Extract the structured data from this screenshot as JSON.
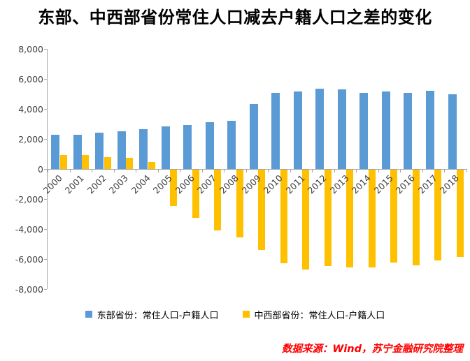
{
  "title": "东部、中西部省份常住人口减去户籍人口之差的变化",
  "source_note": "数据来源：Wind，苏宁金融研究院整理",
  "colors": {
    "eastern": "#5B9BD5",
    "central_western": "#FFC000",
    "axis": "#A6A6A6",
    "tick_label": "#404040",
    "title": "#000000",
    "source": "#FF0000"
  },
  "legend": {
    "items": [
      {
        "id": "eastern",
        "label": "东部省份：常住人口-户籍人口"
      },
      {
        "id": "central-western",
        "label": "中西部省份：常住人口-户籍人口"
      }
    ]
  },
  "chart_data": {
    "type": "bar",
    "title": "东部、中西部省份常住人口减去户籍人口之差的变化",
    "categories": [
      "2000",
      "2001",
      "2002",
      "2003",
      "2004",
      "2005",
      "2006",
      "2007",
      "2008",
      "2009",
      "2010",
      "2011",
      "2012",
      "2013",
      "2014",
      "2015",
      "2016",
      "2017",
      "2018"
    ],
    "series": [
      {
        "id": "eastern",
        "name": "东部省份：常住人口-户籍人口",
        "color": "#5B9BD5",
        "values": [
          2300,
          2300,
          2400,
          2500,
          2650,
          2850,
          2950,
          3100,
          3200,
          4350,
          5050,
          5150,
          5350,
          5300,
          5050,
          5150,
          5050,
          5200,
          5000
        ]
      },
      {
        "id": "central-western",
        "name": "中西部省份：常住人口-户籍人口",
        "color": "#FFC000",
        "values": [
          950,
          950,
          790,
          740,
          470,
          -2400,
          -3200,
          -4050,
          -4500,
          -5350,
          -6250,
          -6650,
          -6400,
          -6500,
          -6500,
          -6200,
          -6350,
          -6050,
          -5800
        ]
      }
    ],
    "xlabel": "",
    "ylabel": "",
    "ylim": [
      -8000,
      8000
    ],
    "ytick_interval": 2000,
    "ytick_labels": [
      "8,000",
      "6,000",
      "4,000",
      "2,000",
      "0",
      "-2,000",
      "-4,000",
      "-6,000",
      "-8,000"
    ],
    "grid": false,
    "legend_position": "bottom",
    "annotations": [
      "数据来源：Wind，苏宁金融研究院整理"
    ]
  }
}
